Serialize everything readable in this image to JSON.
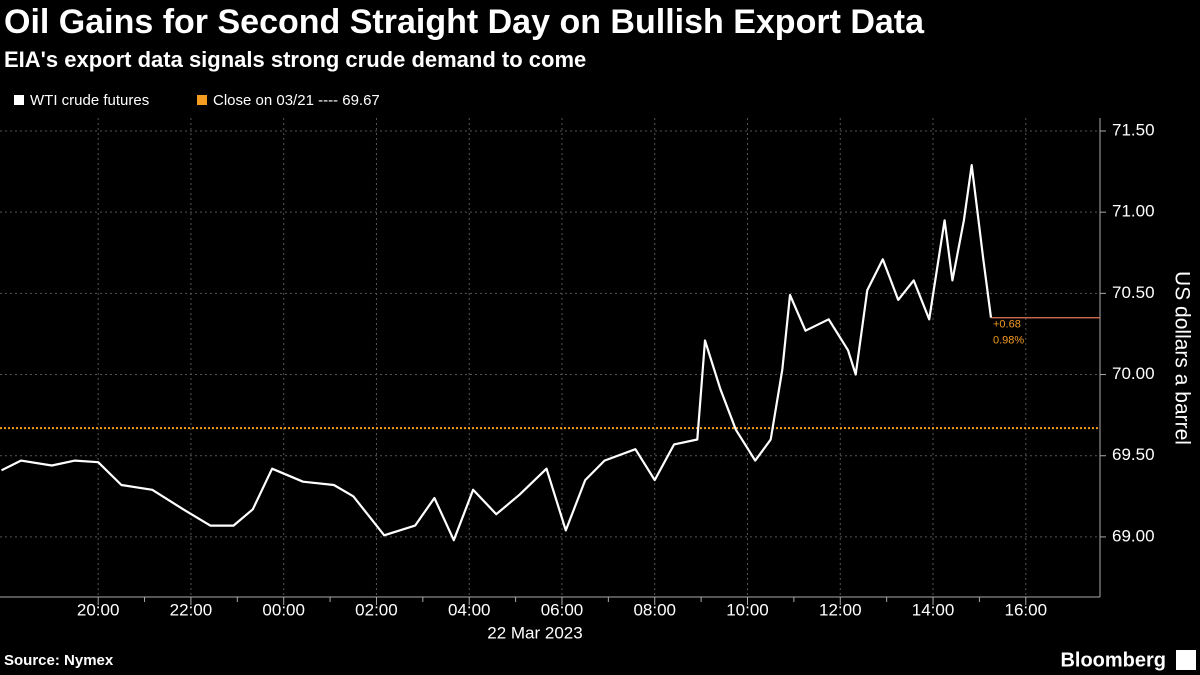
{
  "chart_data": {
    "type": "line",
    "title": "Oil Gains for Second Straight Day on Bullish Export Data",
    "subtitle": "EIA's export data signals strong crude demand to come",
    "ylabel": "US dollars a barrel",
    "xlabel": "22 Mar 2023",
    "source": "Source: Nymex",
    "brand": "Bloomberg",
    "x": [
      "2023-03-21T17:55",
      "2023-03-21T18:20",
      "2023-03-21T19:00",
      "2023-03-21T19:30",
      "2023-03-21T20:00",
      "2023-03-21T20:30",
      "2023-03-21T21:10",
      "2023-03-21T21:50",
      "2023-03-21T22:25",
      "2023-03-21T22:55",
      "2023-03-21T23:20",
      "2023-03-21T23:45",
      "2023-03-22T00:25",
      "2023-03-22T01:05",
      "2023-03-22T01:30",
      "2023-03-22T02:10",
      "2023-03-22T02:50",
      "2023-03-22T03:15",
      "2023-03-22T03:40",
      "2023-03-22T04:05",
      "2023-03-22T04:35",
      "2023-03-22T05:05",
      "2023-03-22T05:40",
      "2023-03-22T06:05",
      "2023-03-22T06:30",
      "2023-03-22T06:55",
      "2023-03-22T07:35",
      "2023-03-22T08:00",
      "2023-03-22T08:25",
      "2023-03-22T08:55",
      "2023-03-22T09:05",
      "2023-03-22T09:25",
      "2023-03-22T09:45",
      "2023-03-22T10:10",
      "2023-03-22T10:30",
      "2023-03-22T10:45",
      "2023-03-22T10:55",
      "2023-03-22T11:15",
      "2023-03-22T11:45",
      "2023-03-22T12:10",
      "2023-03-22T12:20",
      "2023-03-22T12:35",
      "2023-03-22T12:55",
      "2023-03-22T13:15",
      "2023-03-22T13:35",
      "2023-03-22T13:55",
      "2023-03-22T14:15",
      "2023-03-22T14:25",
      "2023-03-22T14:40",
      "2023-03-22T14:50",
      "2023-03-22T15:05",
      "2023-03-22T15:15"
    ],
    "series": [
      {
        "name": "WTI crude futures",
        "color": "#ffffff",
        "values": [
          69.41,
          69.47,
          69.44,
          69.47,
          69.46,
          69.32,
          69.29,
          69.17,
          69.07,
          69.07,
          69.17,
          69.42,
          69.34,
          69.32,
          69.25,
          69.01,
          69.07,
          69.24,
          68.98,
          69.29,
          69.14,
          69.26,
          69.42,
          69.04,
          69.35,
          69.47,
          69.54,
          69.35,
          69.57,
          69.6,
          70.21,
          69.91,
          69.66,
          69.47,
          69.6,
          70.03,
          70.49,
          70.27,
          70.34,
          70.15,
          70.0,
          70.52,
          70.71,
          70.46,
          70.58,
          70.34,
          70.95,
          70.58,
          70.95,
          71.29,
          70.71,
          70.35
        ]
      }
    ],
    "reference": {
      "name": "Close on 03/21 ---- 69.67",
      "value": 69.67,
      "color": "#f39c1f"
    },
    "annotations": [
      "+0.68",
      "0.98%"
    ],
    "annotation_color": "#f39c1f",
    "last_line_color": "#e07b55",
    "xlim": [
      "2023-03-21T17:53",
      "2023-03-22T17:36"
    ],
    "xticks": [
      {
        "value": "2023-03-21T20:00",
        "label": "20:00"
      },
      {
        "value": "2023-03-21T22:00",
        "label": "22:00"
      },
      {
        "value": "2023-03-22T00:00",
        "label": "00:00"
      },
      {
        "value": "2023-03-22T02:00",
        "label": "02:00"
      },
      {
        "value": "2023-03-22T04:00",
        "label": "04:00"
      },
      {
        "value": "2023-03-22T06:00",
        "label": "06:00"
      },
      {
        "value": "2023-03-22T08:00",
        "label": "08:00"
      },
      {
        "value": "2023-03-22T10:00",
        "label": "10:00"
      },
      {
        "value": "2023-03-22T12:00",
        "label": "12:00"
      },
      {
        "value": "2023-03-22T14:00",
        "label": "14:00"
      },
      {
        "value": "2023-03-22T16:00",
        "label": "16:00"
      }
    ],
    "ylim": [
      68.63,
      71.58
    ],
    "yticks": [
      {
        "value": 69,
        "label": "69.00"
      },
      {
        "value": 69.5,
        "label": "69.50"
      },
      {
        "value": 70,
        "label": "70.00"
      },
      {
        "value": 70.5,
        "label": "70.50"
      },
      {
        "value": 71,
        "label": "71.00"
      },
      {
        "value": 71.5,
        "label": "71.50"
      }
    ],
    "grid": true
  }
}
